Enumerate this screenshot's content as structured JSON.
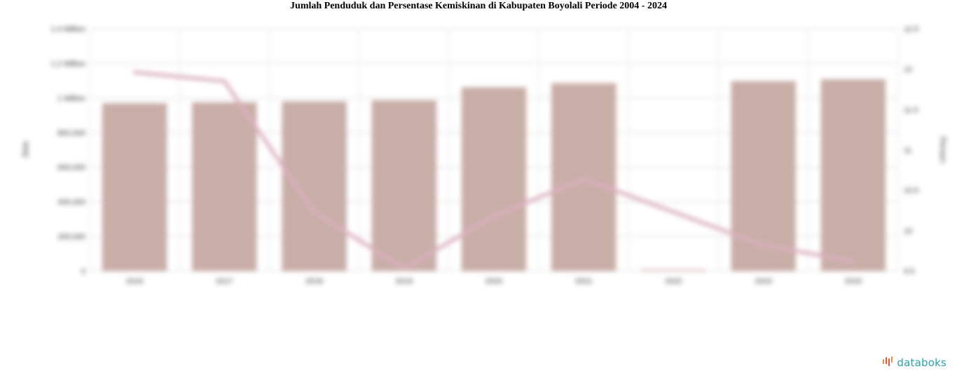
{
  "chart_data": {
    "type": "bar",
    "title": "Jumlah Penduduk dan Persentase Kemiskinan di Kabupaten Boyolali Periode 2004 - 2024",
    "categories": [
      "2016",
      "2017",
      "2018",
      "2019",
      "2020",
      "2021",
      "2022",
      "2023",
      "2024"
    ],
    "series": [
      {
        "type": "bar",
        "axis": "left",
        "values": [
          970000,
          975000,
          980000,
          986000,
          1062000,
          1085000,
          0,
          1097000,
          1108000
        ]
      },
      {
        "type": "line",
        "axis": "right",
        "values": [
          11.96,
          11.85,
          10.23,
          9.53,
          10.18,
          10.64,
          null,
          9.82,
          9.62
        ]
      }
    ],
    "y_left": {
      "label": "Jiwa",
      "ylim": [
        0,
        1400000
      ],
      "ticks": [
        "0",
        "200,000",
        "400,000",
        "600,000",
        "800,000",
        "1 Million",
        "1.2 Million",
        "1.4 Million"
      ]
    },
    "y_right": {
      "label": "Persen",
      "ylim": [
        9.5,
        12.5
      ],
      "ticks": [
        "9.5",
        "10",
        "10.5",
        "11",
        "11.5",
        "12",
        "12.5"
      ]
    },
    "grid": true,
    "colors": {
      "bar": "#c9aea8",
      "line": "#dcb0c0"
    }
  },
  "brand": {
    "name": "databoks",
    "icon": "databoks-logo-icon"
  }
}
